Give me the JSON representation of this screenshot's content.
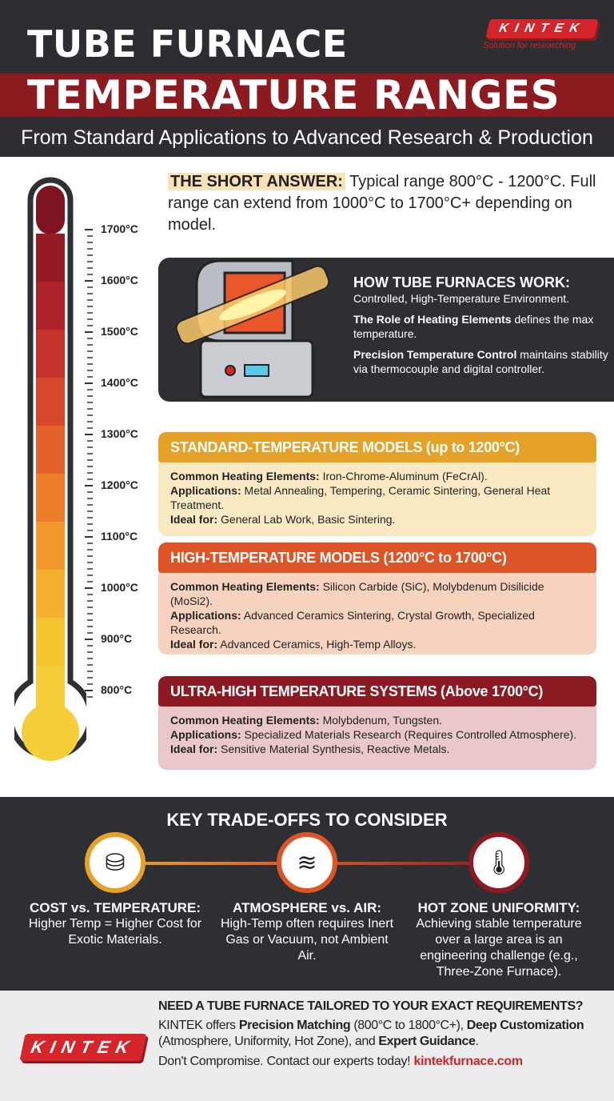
{
  "header": {
    "title_line1": "TUBE FURNACE",
    "title_line2": "TEMPERATURE RANGES",
    "subtitle": "From Standard Applications to Advanced Research & Production",
    "logo": "KINTEK",
    "tagline": "Solution for researching"
  },
  "thermometer": {
    "labels": [
      "1700°C",
      "1600°C",
      "1500°C",
      "1400°C",
      "1300°C",
      "1200°C",
      "1100°C",
      "1000°C",
      "900°C",
      "800°C"
    ],
    "colors": [
      "#7d1420",
      "#941b24",
      "#ad2228",
      "#c5322a",
      "#d9482a",
      "#e5622a",
      "#ee7d2a",
      "#f3982c",
      "#f5b12e",
      "#f4c531",
      "#f5cf3a"
    ]
  },
  "short_answer": {
    "label": "THE SHORT ANSWER:",
    "text": " Typical range 800°C - 1200°C. Full range can extend from 1000°C to 1700°C+ depending on model."
  },
  "how": {
    "title": "HOW TUBE FURNACES WORK:",
    "line1": "Controlled, High-Temperature Environment.",
    "p2_bold": "The Role of Heating Elements",
    "p2_rest": " defines the max temperature.",
    "p3_bold": "Precision Temperature Control",
    "p3_rest": " maintains stability via thermocouple and digital controller."
  },
  "models": [
    {
      "title": "STANDARD-TEMPERATURE MODELS (up to 1200°C)",
      "elements_label": "Common Heating Elements:",
      "elements": " Iron-Chrome-Aluminum (FeCrAl).",
      "apps_label": "Applications:",
      "apps": " Metal Annealing, Tempering, Ceramic Sintering, General Heat Treatment.",
      "ideal_label": "Ideal for:",
      "ideal": " General Lab Work, Basic Sintering."
    },
    {
      "title": "HIGH-TEMPERATURE MODELS (1200°C to 1700°C)",
      "elements_label": "Common Heating Elements:",
      "elements": " Silicon Carbide (SiC), Molybdenum Disilicide (MoSi2).",
      "apps_label": "Applications:",
      "apps": " Advanced Ceramics Sintering, Crystal Growth, Specialized Research.",
      "ideal_label": "Ideal for:",
      "ideal": " Advanced Ceramics, High-Temp Alloys."
    },
    {
      "title": "ULTRA-HIGH TEMPERATURE SYSTEMS (Above 1700°C)",
      "elements_label": "Common Heating Elements:",
      "elements": " Molybdenum, Tungsten.",
      "apps_label": "Applications:",
      "apps": " Specialized Materials Research (Requires Controlled Atmosphere).",
      "ideal_label": "Ideal for:",
      "ideal": " Sensitive Material Synthesis, Reactive Metals."
    }
  ],
  "tradeoffs": {
    "title": "KEY TRADE-OFFS TO CONSIDER",
    "items": [
      {
        "icon": "coins-vs-icon",
        "title": "COST vs. TEMPERATURE:",
        "text": "Higher Temp = Higher Cost for Exotic Materials.",
        "color": "#e6a228"
      },
      {
        "icon": "wind-icon",
        "title": "ATMOSPHERE vs. AIR:",
        "text": "High-Temp often requires Inert Gas or Vacuum, not Ambient Air.",
        "color": "#dd5527"
      },
      {
        "icon": "thermometer-icon",
        "title": "HOT ZONE UNIFORMITY:",
        "text": "Achieving stable temperature over a large area is an engineering challenge (e.g., Three-Zone Furnace).",
        "color": "#8d1a22"
      }
    ]
  },
  "cta": {
    "logo": "KINTEK",
    "title": "NEED A TUBE FURNACE TAILORED TO YOUR EXACT REQUIREMENTS?",
    "t1": "KINTEK offers ",
    "b1": "Precision Matching",
    "t2": " (800°C to 1800°C+), ",
    "b2": "Deep Customization",
    "t3": " (Atmosphere, Uniformity, Hot Zone), and ",
    "b3": "Expert Guidance",
    "t4": ".",
    "line": "Don't Compromise. Contact our experts today! ",
    "link": "kintekfurnace.com"
  }
}
